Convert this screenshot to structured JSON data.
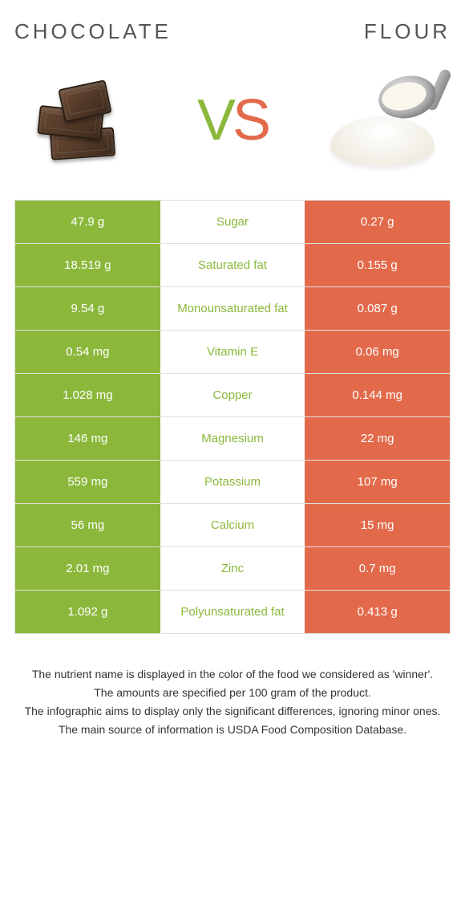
{
  "colors": {
    "green": "#8bb83b",
    "orange": "#e26a4b"
  },
  "header": {
    "left": "CHOCOLATE",
    "right": "FLOUR"
  },
  "vs": {
    "v": "V",
    "s": "S"
  },
  "rows": [
    {
      "left": "47.9 g",
      "label": "Sugar",
      "right": "0.27 g",
      "winner": "left"
    },
    {
      "left": "18.519 g",
      "label": "Saturated fat",
      "right": "0.155 g",
      "winner": "left"
    },
    {
      "left": "9.54 g",
      "label": "Monounsaturated fat",
      "right": "0.087 g",
      "winner": "left"
    },
    {
      "left": "0.54 mg",
      "label": "Vitamin E",
      "right": "0.06 mg",
      "winner": "left"
    },
    {
      "left": "1.028 mg",
      "label": "Copper",
      "right": "0.144 mg",
      "winner": "left"
    },
    {
      "left": "146 mg",
      "label": "Magnesium",
      "right": "22 mg",
      "winner": "left"
    },
    {
      "left": "559 mg",
      "label": "Potassium",
      "right": "107 mg",
      "winner": "left"
    },
    {
      "left": "56 mg",
      "label": "Calcium",
      "right": "15 mg",
      "winner": "left"
    },
    {
      "left": "2.01 mg",
      "label": "Zinc",
      "right": "0.7 mg",
      "winner": "left"
    },
    {
      "left": "1.092 g",
      "label": "Polyunsaturated fat",
      "right": "0.413 g",
      "winner": "left"
    }
  ],
  "footer": [
    "The nutrient name is displayed in the color of the food we considered as 'winner'.",
    "The amounts are specified per 100 gram of the product.",
    "The infographic aims to display only the significant differences, ignoring minor ones.",
    "The main source of information is USDA Food Composition Database."
  ]
}
